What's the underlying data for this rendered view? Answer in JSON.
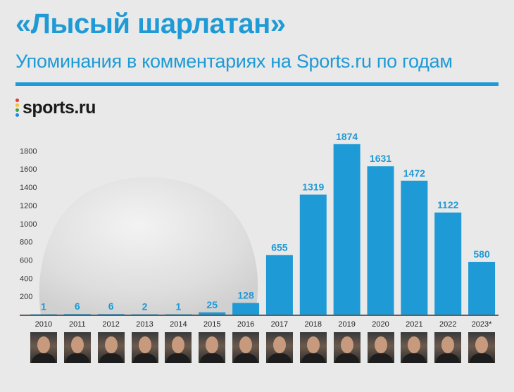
{
  "header": {
    "title": "«Лысый шарлатан»",
    "subtitle": "Упоминания в комментариях на Sports.ru по годам"
  },
  "logo": {
    "text": "sports.ru",
    "dot_colors": [
      "#e53935",
      "#fbc02d",
      "#43a047",
      "#1e88e5"
    ]
  },
  "colors": {
    "accent": "#1e9ad6",
    "bar": "#1e9ad6",
    "background": "#e9e9e9"
  },
  "chart_data": {
    "type": "bar",
    "title": "«Лысый шарлатан»",
    "subtitle": "Упоминания в комментариях на Sports.ru по годам",
    "categories": [
      "2010",
      "2011",
      "2012",
      "2013",
      "2014",
      "2015",
      "2016",
      "2017",
      "2018",
      "2019",
      "2020",
      "2021",
      "2022",
      "2023*"
    ],
    "values": [
      1,
      6,
      6,
      2,
      1,
      25,
      128,
      655,
      1319,
      1874,
      1631,
      1472,
      1122,
      580
    ],
    "data_labels": [
      "1",
      "6",
      "6",
      "2",
      "1",
      "25",
      "128",
      "655",
      "1319",
      "1874",
      "1631",
      "1472",
      "1122",
      "580"
    ],
    "yticks": [
      "200",
      "400",
      "600",
      "800",
      "1000",
      "1200",
      "1400",
      "1600",
      "1800"
    ],
    "ylim": [
      0,
      1950
    ],
    "grid": false,
    "legend": "none"
  }
}
